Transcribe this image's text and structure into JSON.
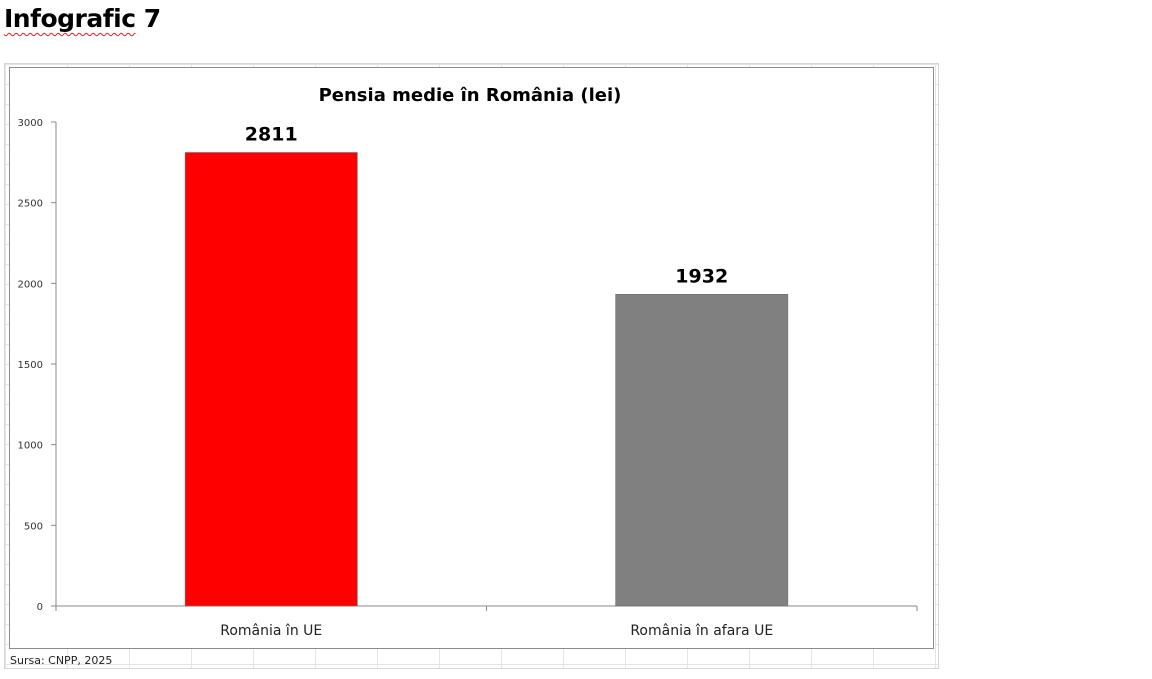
{
  "page": {
    "heading": "Infografic 7",
    "heading_first": "Infografic",
    "heading_second": "7"
  },
  "source_note": "Sursa: CNPP, 2025",
  "chart_data": {
    "type": "bar",
    "title": "Pensia medie în România (lei)",
    "xlabel": "",
    "ylabel": "",
    "categories": [
      "România în UE",
      "România în afara UE"
    ],
    "values": [
      2811,
      1932
    ],
    "data_labels": [
      "2811",
      "1932"
    ],
    "colors": [
      "#ff0000",
      "#808080"
    ],
    "ylim": [
      0,
      3000
    ],
    "yticks": [
      0,
      500,
      1000,
      1500,
      2000,
      2500,
      3000
    ],
    "ytick_labels": [
      "0",
      "500",
      "1000",
      "1500",
      "2000",
      "2500",
      "3000"
    ],
    "grid": false,
    "legend": "none"
  }
}
